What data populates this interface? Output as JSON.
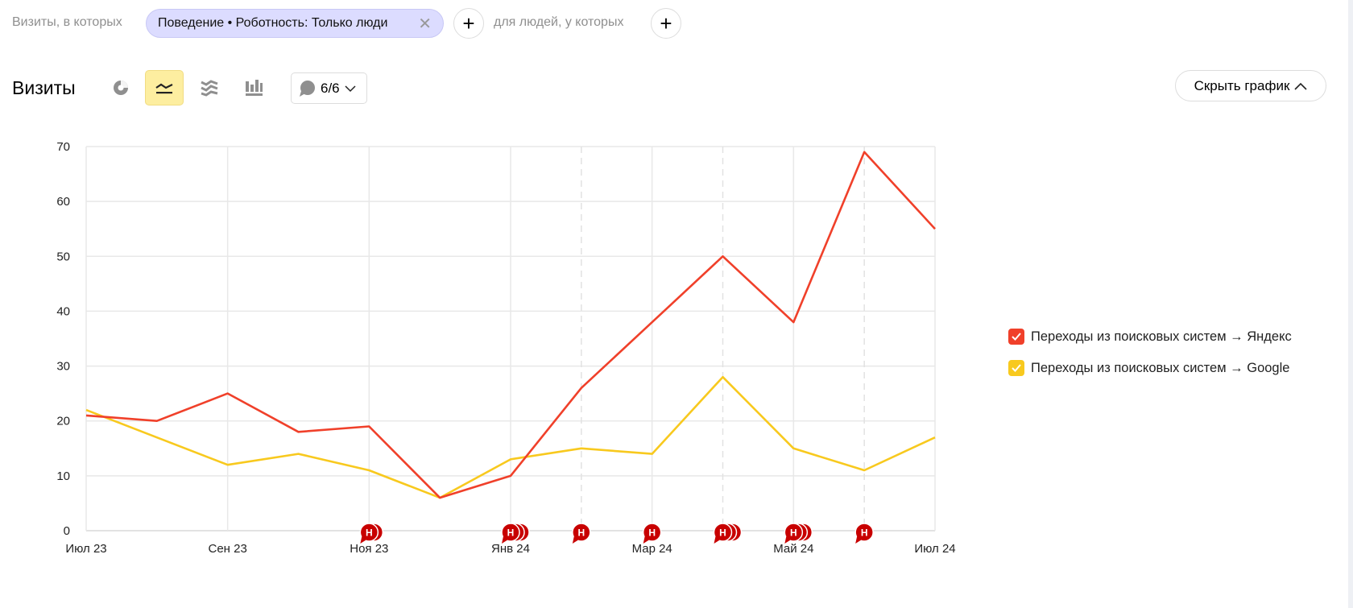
{
  "filters": {
    "visits_label": "Визиты, в которых",
    "chip_label": "Поведение • Роботность: Только люди",
    "people_label": "для людей, у которых",
    "add_symbol": "+",
    "close_symbol": "✕"
  },
  "header": {
    "title": "Визиты",
    "chart_types": [
      {
        "name": "pie",
        "icon": "pie-chart-icon",
        "active": false
      },
      {
        "name": "line",
        "icon": "line-chart-icon",
        "active": true
      },
      {
        "name": "stacked",
        "icon": "stacked-area-icon",
        "active": false
      },
      {
        "name": "bar",
        "icon": "bar-chart-icon",
        "active": false
      }
    ],
    "comments_count": "6/6",
    "hide_chart_label": "Скрыть график"
  },
  "chart_data": {
    "type": "line",
    "x": [
      "2023-07",
      "2023-08",
      "2023-09",
      "2023-10",
      "2023-11",
      "2023-12",
      "2024-01",
      "2024-02",
      "2024-03",
      "2024-04",
      "2024-05",
      "2024-06",
      "2024-07"
    ],
    "x_tick_labels": [
      "Июл 23",
      "Сен 23",
      "Ноя 23",
      "Янв 24",
      "Мар 24",
      "Май 24",
      "Июл 24"
    ],
    "y_ticks": [
      0,
      10,
      20,
      30,
      40,
      50,
      60,
      70
    ],
    "ylim": [
      0,
      70
    ],
    "grid": true,
    "legend_placement": "right",
    "series": [
      {
        "name": "Переходы из поисковых систем → Яндекс",
        "color": "#f0402a",
        "values": [
          21,
          20,
          25,
          18,
          19,
          6,
          10,
          26,
          38,
          50,
          38,
          69,
          55
        ]
      },
      {
        "name": "Переходы из поисковых систем → Google",
        "color": "#f8c91e",
        "values": [
          22,
          17,
          12,
          14,
          11,
          6,
          13,
          15,
          14,
          28,
          15,
          11,
          17
        ]
      }
    ],
    "annotations": {
      "letter": "Н",
      "color": "#c80000",
      "items": [
        {
          "x": "2023-11",
          "count": 2
        },
        {
          "x": "2024-01",
          "count": 3
        },
        {
          "x": "2024-02",
          "count": 1
        },
        {
          "x": "2024-03",
          "count": 1
        },
        {
          "x": "2024-04",
          "count": 3
        },
        {
          "x": "2024-05",
          "count": 3
        },
        {
          "x": "2024-06",
          "count": 1
        }
      ]
    }
  }
}
